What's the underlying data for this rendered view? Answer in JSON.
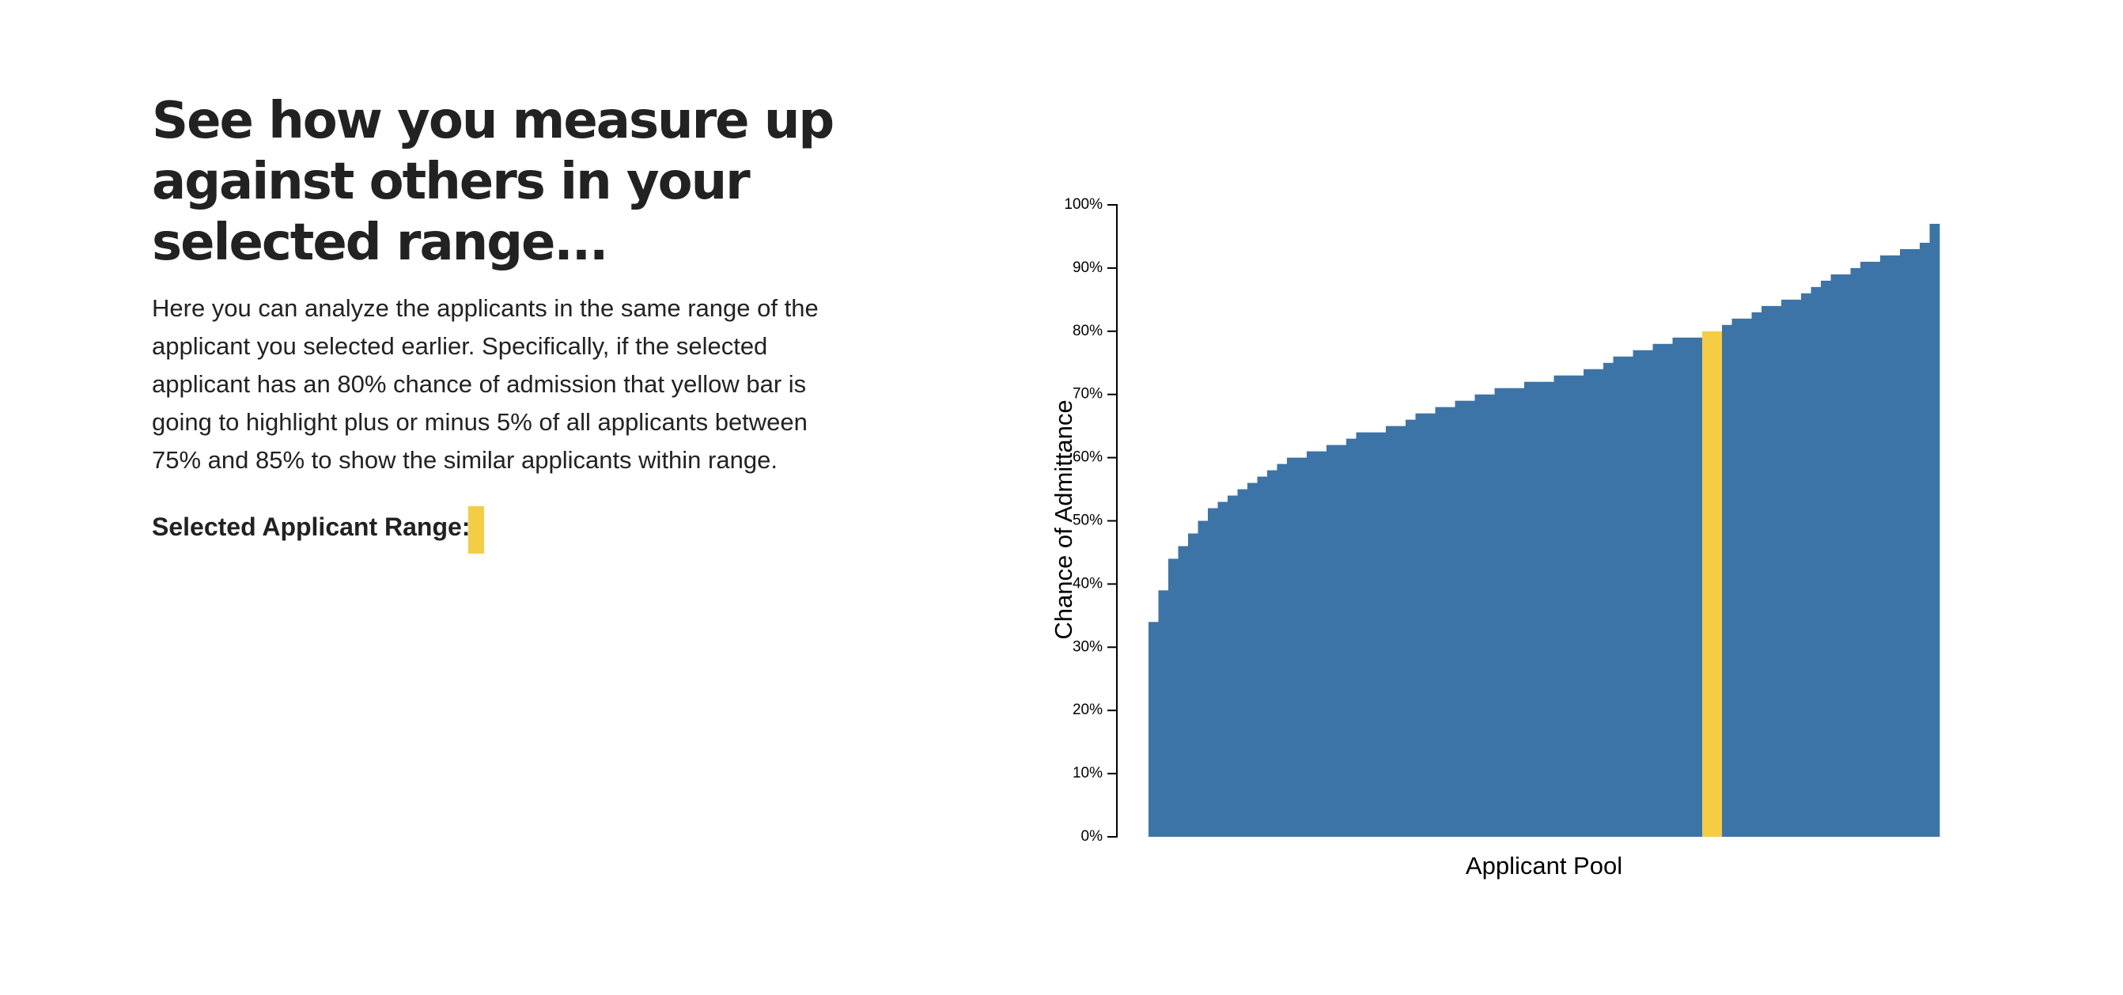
{
  "header": {
    "title": "See how you measure up against others in your selected range...",
    "paragraph": "Here you can analyze the applicants in the same range of the applicant you selected earlier. Specifically, if the selected applicant has an 80% chance of admission that yellow bar is going to highlight plus or minus 5% of all applicants between 75% and 85% to show the similar applicants within range.",
    "range_label": "Selected Applicant Range:",
    "range_color": "#f5cd45"
  },
  "chart_data": {
    "type": "bar",
    "xlabel": "Applicant Pool",
    "ylabel": "Chance of Admittance",
    "ylim": [
      0,
      100
    ],
    "yticks": [
      {
        "value": 0,
        "label": "0%"
      },
      {
        "value": 10,
        "label": "10%"
      },
      {
        "value": 20,
        "label": "20%"
      },
      {
        "value": 30,
        "label": "30%"
      },
      {
        "value": 40,
        "label": "40%"
      },
      {
        "value": 50,
        "label": "50%"
      },
      {
        "value": 60,
        "label": "60%"
      },
      {
        "value": 70,
        "label": "70%"
      },
      {
        "value": 80,
        "label": "80%"
      },
      {
        "value": 90,
        "label": "90%"
      },
      {
        "value": 100,
        "label": "100%"
      }
    ],
    "categories": [
      null,
      null,
      null,
      null,
      null,
      null,
      null,
      null,
      null,
      null,
      null,
      null,
      null,
      null,
      null,
      null,
      null,
      null,
      null,
      null,
      null,
      null,
      null,
      null,
      null,
      null,
      null,
      null,
      null,
      null,
      null,
      null,
      null,
      null,
      null,
      null,
      null,
      null,
      null,
      null,
      null,
      null,
      null,
      null,
      null,
      null,
      null,
      null,
      null,
      null,
      null,
      null,
      null,
      null,
      null,
      null,
      null,
      null,
      null,
      null,
      null,
      null,
      null,
      null,
      null,
      null,
      null,
      null,
      null,
      null,
      null,
      null,
      null,
      null,
      null,
      null,
      null,
      null,
      null,
      null
    ],
    "values": [
      34,
      39,
      44,
      46,
      48,
      50,
      52,
      53,
      54,
      55,
      56,
      57,
      58,
      59,
      60,
      60,
      61,
      61,
      62,
      62,
      63,
      64,
      64,
      64,
      65,
      65,
      66,
      67,
      67,
      68,
      68,
      69,
      69,
      70,
      70,
      71,
      71,
      71,
      72,
      72,
      72,
      73,
      73,
      73,
      74,
      74,
      75,
      76,
      76,
      77,
      77,
      78,
      78,
      79,
      79,
      79,
      80,
      80,
      81,
      82,
      82,
      83,
      84,
      84,
      85,
      85,
      86,
      87,
      88,
      89,
      89,
      90,
      91,
      91,
      92,
      92,
      93,
      93,
      94,
      97
    ],
    "colors": [
      "#3d74a8",
      "#3d74a8",
      "#3d74a8",
      "#3d74a8",
      "#3d74a8",
      "#3d74a8",
      "#3d74a8",
      "#3d74a8",
      "#3d74a8",
      "#3d74a8",
      "#3d74a8",
      "#3d74a8",
      "#3d74a8",
      "#3d74a8",
      "#3d74a8",
      "#3d74a8",
      "#3d74a8",
      "#3d74a8",
      "#3d74a8",
      "#3d74a8",
      "#3d74a8",
      "#3d74a8",
      "#3d74a8",
      "#3d74a8",
      "#3d74a8",
      "#3d74a8",
      "#3d74a8",
      "#3d74a8",
      "#3d74a8",
      "#3d74a8",
      "#3d74a8",
      "#3d74a8",
      "#3d74a8",
      "#3d74a8",
      "#3d74a8",
      "#3d74a8",
      "#3d74a8",
      "#3d74a8",
      "#3d74a8",
      "#3d74a8",
      "#3d74a8",
      "#3d74a8",
      "#3d74a8",
      "#3d74a8",
      "#3d74a8",
      "#3d74a8",
      "#3d74a8",
      "#3d74a8",
      "#3d74a8",
      "#3d74a8",
      "#3d74a8",
      "#3d74a8",
      "#3d74a8",
      "#3d74a8",
      "#3d74a8",
      "#3d74a8",
      "#f5cd45",
      "#f5cd45",
      "#3d74a8",
      "#3d74a8",
      "#3d74a8",
      "#3d74a8",
      "#3d74a8",
      "#3d74a8",
      "#3d74a8",
      "#3d74a8",
      "#3d74a8",
      "#3d74a8",
      "#3d74a8",
      "#3d74a8",
      "#3d74a8",
      "#3d74a8",
      "#3d74a8",
      "#3d74a8",
      "#3d74a8",
      "#3d74a8",
      "#3d74a8",
      "#3d74a8",
      "#3d74a8",
      "#3d74a8"
    ]
  }
}
